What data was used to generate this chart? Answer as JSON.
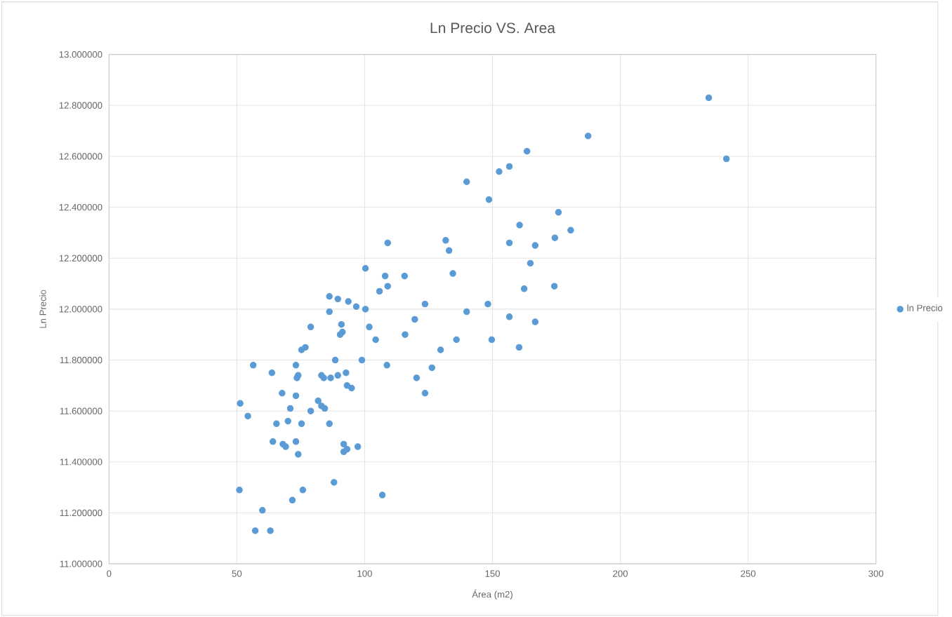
{
  "chart_data": {
    "type": "scatter",
    "title": "Ln Precio VS. Area",
    "xlabel": "Área (m2)",
    "ylabel": "Ln Precio",
    "xlim": [
      0,
      300
    ],
    "xticks": [
      0,
      50,
      100,
      150,
      200,
      250,
      300
    ],
    "ylim": [
      11.0,
      13.0
    ],
    "yticks": [
      {
        "value": 11.0,
        "label": "11.000000"
      },
      {
        "value": 11.2,
        "label": "11.200000"
      },
      {
        "value": 11.4,
        "label": "11.400000"
      },
      {
        "value": 11.6,
        "label": "11.600000"
      },
      {
        "value": 11.8,
        "label": "11.800000"
      },
      {
        "value": 12.0,
        "label": "12.000000"
      },
      {
        "value": 12.2,
        "label": "12.200000"
      },
      {
        "value": 12.4,
        "label": "12.400000"
      },
      {
        "value": 12.6,
        "label": "12.600000"
      },
      {
        "value": 12.8,
        "label": "12.800000"
      },
      {
        "value": 13.0,
        "label": "13.000000"
      }
    ],
    "grid": true,
    "legend": "right",
    "marker": "circle",
    "series": [
      {
        "name": "ln Precio",
        "color": "#5b9bd5",
        "x": [
          109.0,
          100.3,
          108.0,
          115.6,
          105.8,
          109.0,
          86.2,
          89.5,
          93.6,
          96.7,
          100.3,
          86.2,
          78.9,
          101.8,
          90.9,
          90.4,
          91.3,
          104.3,
          115.8,
          119.6,
          123.6,
          129.7,
          75.3,
          76.8,
          56.4,
          63.7,
          73.1,
          74.0,
          73.5,
          83.1,
          84.0,
          86.7,
          89.5,
          92.7,
          88.5,
          98.9,
          108.7,
          93.1,
          94.9,
          120.3,
          126.3,
          123.6,
          67.7,
          73.1,
          81.8,
          83.1,
          78.9,
          84.4,
          51.3,
          54.3,
          70.9,
          65.5,
          70.0,
          75.3,
          86.2,
          64.1,
          68.0,
          69.1,
          73.1,
          74.0,
          91.8,
          93.1,
          91.8,
          97.3,
          88.0,
          51.0,
          75.8,
          71.7,
          106.9,
          60.0,
          57.2,
          63.1,
          234.6,
          187.4,
          241.5,
          163.5,
          152.6,
          156.6,
          139.9,
          148.6,
          175.8,
          160.6,
          180.6,
          174.4,
          156.6,
          166.7,
          133.0,
          131.7,
          164.8,
          134.5,
          162.4,
          174.2,
          139.9,
          148.2,
          156.6,
          166.7,
          135.9,
          149.7,
          160.4
        ],
        "values": [
          12.26,
          12.16,
          12.13,
          12.13,
          12.07,
          12.09,
          12.05,
          12.04,
          12.03,
          12.01,
          12.0,
          11.99,
          11.93,
          11.93,
          11.94,
          11.9,
          11.91,
          11.88,
          11.9,
          11.96,
          12.02,
          11.84,
          11.84,
          11.85,
          11.78,
          11.75,
          11.78,
          11.74,
          11.73,
          11.74,
          11.73,
          11.73,
          11.74,
          11.75,
          11.8,
          11.8,
          11.78,
          11.7,
          11.69,
          11.73,
          11.77,
          11.67,
          11.67,
          11.66,
          11.64,
          11.62,
          11.6,
          11.61,
          11.63,
          11.58,
          11.61,
          11.55,
          11.56,
          11.55,
          11.55,
          11.48,
          11.47,
          11.46,
          11.48,
          11.43,
          11.47,
          11.45,
          11.44,
          11.46,
          11.32,
          11.29,
          11.29,
          11.25,
          11.27,
          11.21,
          11.13,
          11.13,
          12.83,
          12.68,
          12.59,
          12.62,
          12.54,
          12.56,
          12.5,
          12.43,
          12.38,
          12.33,
          12.31,
          12.28,
          12.26,
          12.25,
          12.23,
          12.27,
          12.18,
          12.14,
          12.08,
          12.09,
          11.99,
          12.02,
          11.97,
          11.95,
          11.88,
          11.88,
          11.85
        ]
      }
    ]
  }
}
